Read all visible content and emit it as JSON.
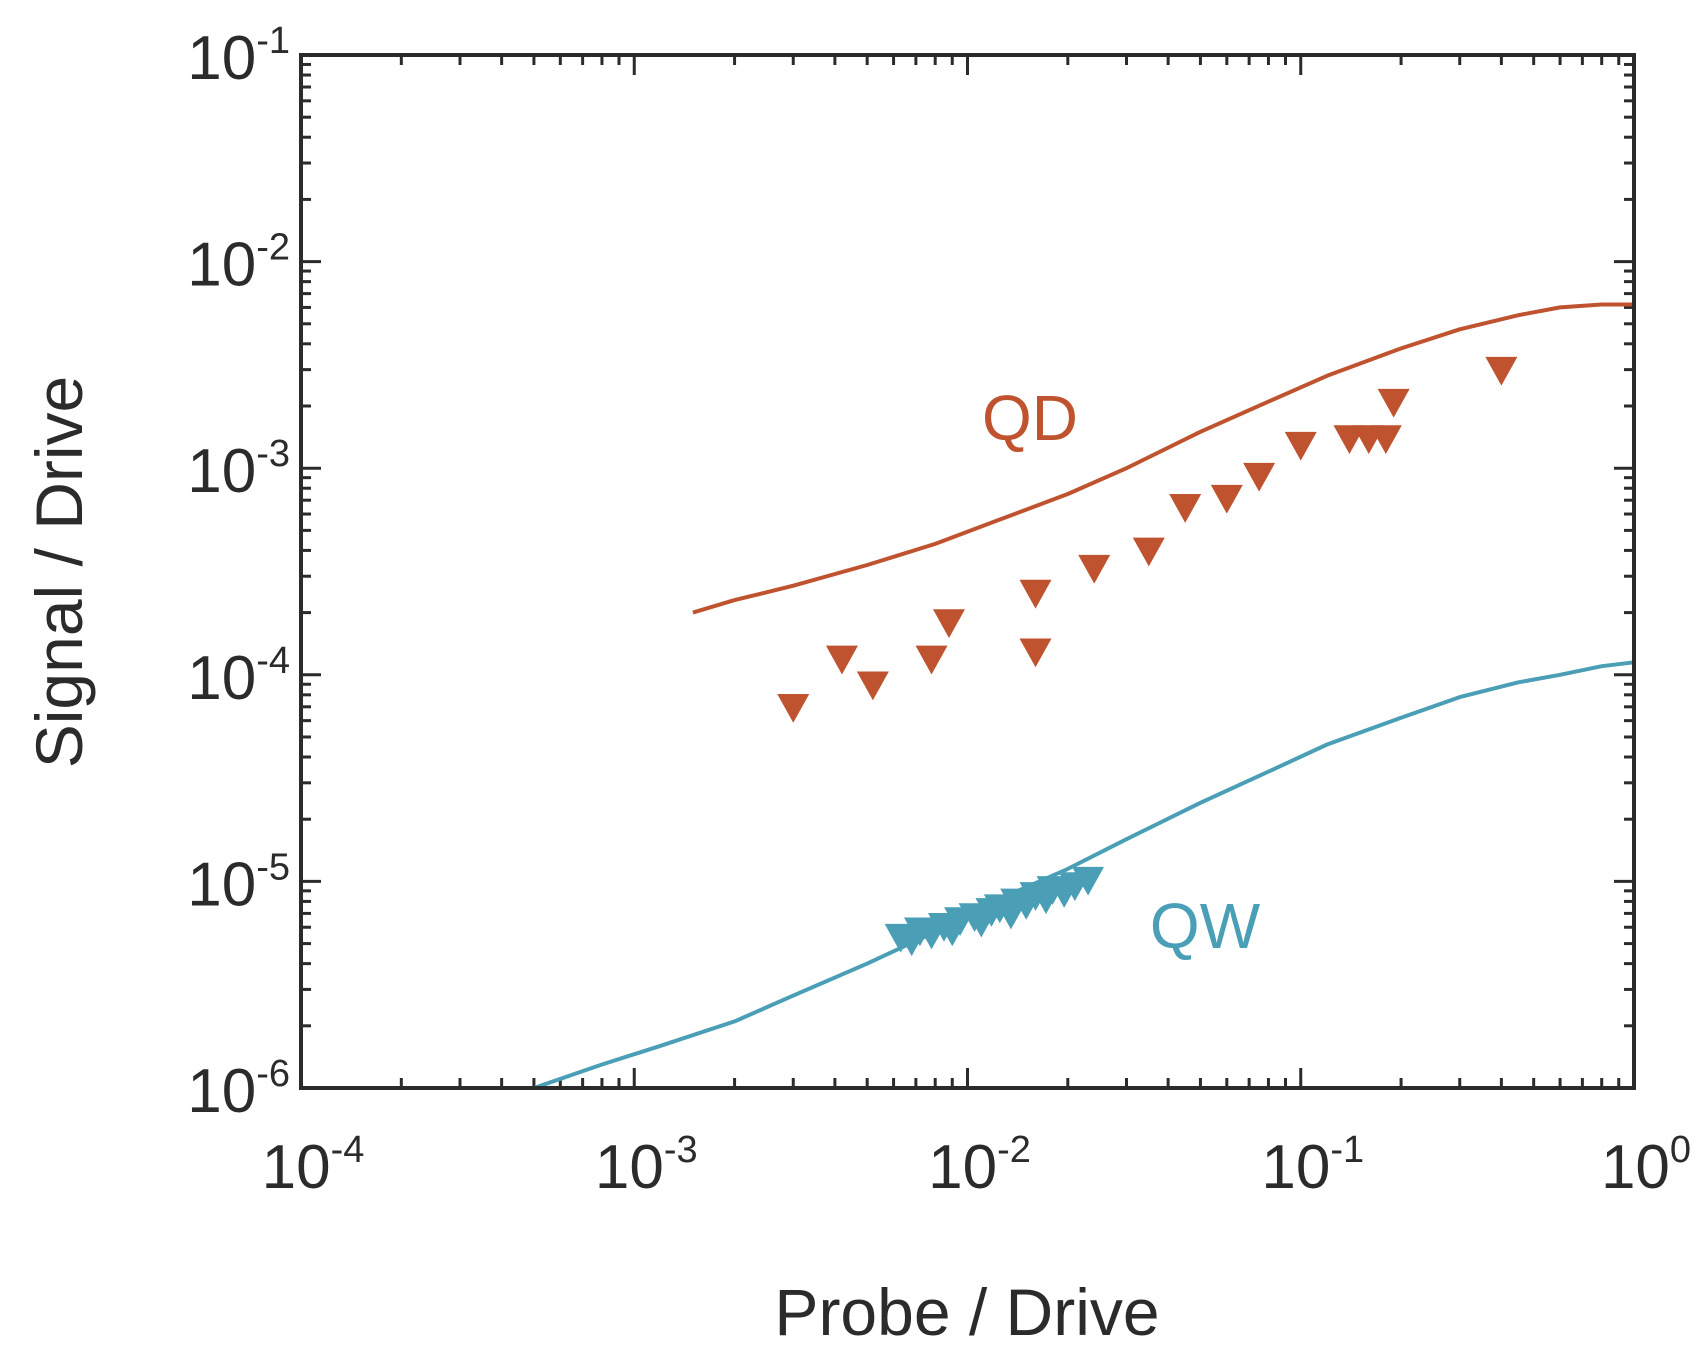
{
  "chart_data": {
    "type": "scatter",
    "title": "",
    "xlabel": "Probe / Drive",
    "ylabel": "Signal / Drive",
    "xscale": "log",
    "yscale": "log",
    "xlim": [
      0.0001,
      1
    ],
    "ylim": [
      1e-06,
      0.1
    ],
    "grid": false,
    "x_ticks": [
      {
        "base": "10",
        "exp": "-4",
        "value": 0.0001
      },
      {
        "base": "10",
        "exp": "-3",
        "value": 0.001
      },
      {
        "base": "10",
        "exp": "-2",
        "value": 0.01
      },
      {
        "base": "10",
        "exp": "-1",
        "value": 0.1
      },
      {
        "base": "10",
        "exp": "0",
        "value": 1
      }
    ],
    "y_ticks": [
      {
        "base": "10",
        "exp": "-6",
        "value": 1e-06
      },
      {
        "base": "10",
        "exp": "-5",
        "value": 1e-05
      },
      {
        "base": "10",
        "exp": "-4",
        "value": 0.0001
      },
      {
        "base": "10",
        "exp": "-3",
        "value": 0.001
      },
      {
        "base": "10",
        "exp": "-2",
        "value": 0.01
      },
      {
        "base": "10",
        "exp": "-1",
        "value": 0.1
      }
    ],
    "series": [
      {
        "name": "QD",
        "color": "#c0532f",
        "label": "QD",
        "curve": {
          "x": [
            0.0015,
            0.002,
            0.003,
            0.005,
            0.008,
            0.012,
            0.02,
            0.03,
            0.05,
            0.08,
            0.12,
            0.2,
            0.3,
            0.45,
            0.6,
            0.8,
            1.0
          ],
          "y": [
            0.0002,
            0.00023,
            0.00027,
            0.00034,
            0.00043,
            0.00055,
            0.00075,
            0.001,
            0.0015,
            0.0021,
            0.0028,
            0.0038,
            0.0047,
            0.0055,
            0.006,
            0.0062,
            0.0062
          ]
        },
        "points": {
          "x": [
            0.003,
            0.0042,
            0.0052,
            0.0078,
            0.0088,
            0.016,
            0.016,
            0.024,
            0.035,
            0.045,
            0.06,
            0.075,
            0.1,
            0.14,
            0.16,
            0.18,
            0.19,
            0.4
          ],
          "y": [
            7e-05,
            0.00012,
            9e-05,
            0.00012,
            0.00018,
            0.00013,
            0.00025,
            0.00033,
            0.0004,
            0.00065,
            0.00072,
            0.00092,
            0.0013,
            0.0014,
            0.0014,
            0.0014,
            0.0021,
            0.003
          ]
        }
      },
      {
        "name": "QW",
        "color": "#4a9fb6",
        "label": "QW",
        "curve": {
          "x": [
            0.0005,
            0.0008,
            0.0012,
            0.002,
            0.003,
            0.005,
            0.008,
            0.012,
            0.02,
            0.03,
            0.05,
            0.08,
            0.12,
            0.2,
            0.3,
            0.45,
            0.6,
            0.8,
            1.0
          ],
          "y": [
            1e-06,
            1.3e-06,
            1.6e-06,
            2.1e-06,
            2.8e-06,
            4e-06,
            5.7e-06,
            8e-06,
            1.15e-05,
            1.6e-05,
            2.4e-05,
            3.4e-05,
            4.6e-05,
            6.2e-05,
            7.8e-05,
            9.2e-05,
            0.0001,
            0.00011,
            0.000115
          ]
        },
        "points": {
          "x": [
            0.0063,
            0.0068,
            0.0072,
            0.0078,
            0.0085,
            0.009,
            0.0095,
            0.0105,
            0.011,
            0.0118,
            0.0125,
            0.0135,
            0.014,
            0.015,
            0.016,
            0.0172,
            0.018,
            0.0195,
            0.021,
            0.023
          ],
          "y": [
            5.4e-06,
            5.2e-06,
            5.8e-06,
            5.6e-06,
            6.1e-06,
            5.8e-06,
            6.5e-06,
            6.8e-06,
            6.4e-06,
            7.2e-06,
            7.5e-06,
            7e-06,
            8e-06,
            7.8e-06,
            8.6e-06,
            8.3e-06,
            9.2e-06,
            8.9e-06,
            9.6e-06,
            1.02e-05
          ]
        }
      }
    ]
  }
}
